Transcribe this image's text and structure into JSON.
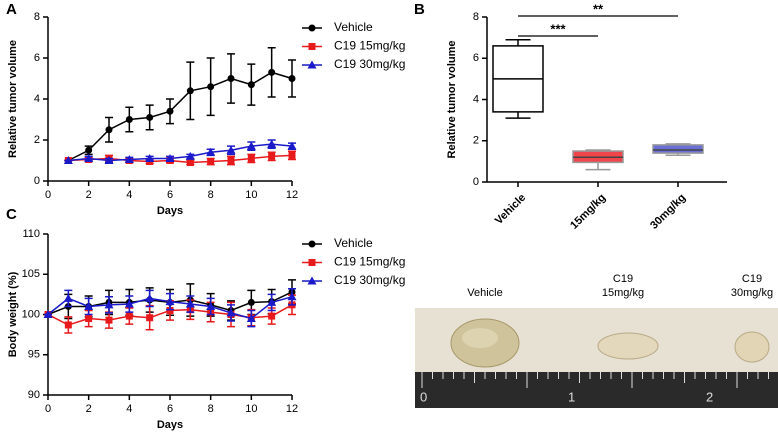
{
  "chart_data": [
    {
      "type": "line",
      "panel": "A",
      "xlabel": "Days",
      "ylabel": "Relative tumor volume",
      "x": [
        1,
        2,
        3,
        4,
        5,
        6,
        7,
        8,
        9,
        10,
        11,
        12
      ],
      "xlim": [
        0,
        12
      ],
      "xticks": [
        0,
        2,
        4,
        6,
        8,
        10,
        12
      ],
      "ylim": [
        0,
        8
      ],
      "yticks": [
        0,
        2,
        4,
        6,
        8
      ],
      "legend": "upper right outside",
      "series": [
        {
          "name": "Vehicle",
          "color": "#000000",
          "marker": "circle",
          "values": [
            1.0,
            1.5,
            2.5,
            3.0,
            3.1,
            3.4,
            4.4,
            4.6,
            5.0,
            4.7,
            5.3,
            5.0
          ],
          "errors": [
            0,
            0.2,
            0.6,
            0.6,
            0.6,
            0.6,
            1.4,
            1.4,
            1.2,
            1.0,
            1.2,
            0.9
          ]
        },
        {
          "name": "C19 15mg/kg",
          "color": "#e8191b",
          "marker": "square",
          "values": [
            1.0,
            1.05,
            1.1,
            1.0,
            0.95,
            1.0,
            0.9,
            0.95,
            1.0,
            1.1,
            1.2,
            1.25
          ],
          "errors": [
            0,
            0.1,
            0.15,
            0.1,
            0.1,
            0.1,
            0.1,
            0.15,
            0.2,
            0.2,
            0.2,
            0.2
          ]
        },
        {
          "name": "C19 30mg/kg",
          "color": "#1a1acb",
          "marker": "triangle",
          "values": [
            1.0,
            1.1,
            1.0,
            1.05,
            1.1,
            1.1,
            1.2,
            1.4,
            1.5,
            1.7,
            1.8,
            1.7
          ],
          "errors": [
            0,
            0.1,
            0.1,
            0.1,
            0.1,
            0.1,
            0.1,
            0.15,
            0.2,
            0.2,
            0.2,
            0.15
          ]
        }
      ]
    },
    {
      "type": "box",
      "panel": "B",
      "ylabel": "Relative tumor volume",
      "categories": [
        "Vehicle",
        "15mg/kg",
        "30mg/kg"
      ],
      "ylim": [
        0,
        8
      ],
      "yticks": [
        0,
        2,
        4,
        6,
        8
      ],
      "boxes": [
        {
          "min": 3.1,
          "q1": 3.4,
          "median": 5.0,
          "q3": 6.6,
          "max": 6.9,
          "color": "#ffffff",
          "edge": "#000000"
        },
        {
          "min": 0.6,
          "q1": 0.95,
          "median": 1.2,
          "q3": 1.5,
          "max": 1.55,
          "color": "#f0454a",
          "edge": "#999999"
        },
        {
          "min": 1.3,
          "q1": 1.4,
          "median": 1.55,
          "q3": 1.8,
          "max": 1.85,
          "color": "#6a6fd6",
          "edge": "#999999"
        }
      ],
      "annotations": [
        {
          "text": "***",
          "from": 0,
          "to": 1
        },
        {
          "text": "**",
          "from": 0,
          "to": 2
        }
      ]
    },
    {
      "type": "line",
      "panel": "C",
      "xlabel": "Days",
      "ylabel": "Body weight (%)",
      "x": [
        0,
        1,
        2,
        3,
        4,
        5,
        6,
        7,
        8,
        9,
        10,
        11,
        12
      ],
      "xlim": [
        0,
        12
      ],
      "xticks": [
        0,
        2,
        4,
        6,
        8,
        10,
        12
      ],
      "ylim": [
        90,
        110
      ],
      "yticks": [
        90,
        95,
        100,
        105,
        110
      ],
      "legend": "upper right outside",
      "series": [
        {
          "name": "Vehicle",
          "color": "#000000",
          "marker": "circle",
          "values": [
            100,
            101,
            101,
            101.5,
            101.5,
            101.8,
            101.5,
            101.8,
            101.2,
            100.5,
            101.5,
            101.6,
            102.8
          ],
          "errors": [
            0,
            1.5,
            1.3,
            1.5,
            1.6,
            1.5,
            1.6,
            2.0,
            1.4,
            1.2,
            1.5,
            1.5,
            1.5
          ]
        },
        {
          "name": "C19 15mg/kg",
          "color": "#e8191b",
          "marker": "square",
          "values": [
            100,
            98.7,
            99.5,
            99.3,
            99.8,
            99.6,
            100.5,
            100.6,
            100.3,
            100,
            99.6,
            99.8,
            101.2
          ],
          "errors": [
            0,
            1.0,
            1.0,
            1.0,
            1.0,
            1.5,
            1.2,
            1.2,
            1.2,
            1.5,
            1.0,
            1.0,
            1.2
          ]
        },
        {
          "name": "C19 30mg/kg",
          "color": "#1a1acb",
          "marker": "triangle",
          "values": [
            100,
            102,
            101,
            101.2,
            101.3,
            102,
            101.6,
            101.3,
            101,
            100.2,
            99.5,
            101.5,
            102.2
          ],
          "errors": [
            0,
            1.0,
            1.0,
            1.0,
            1.0,
            1.0,
            1.0,
            1.0,
            1.0,
            1.0,
            1.0,
            1.0,
            1.0
          ]
        }
      ]
    }
  ],
  "photo": {
    "labels": [
      [
        "Vehicle"
      ],
      [
        "C19",
        "15mg/kg"
      ],
      [
        "C19",
        "30mg/kg"
      ]
    ],
    "ruler": [
      0,
      1,
      2
    ]
  }
}
